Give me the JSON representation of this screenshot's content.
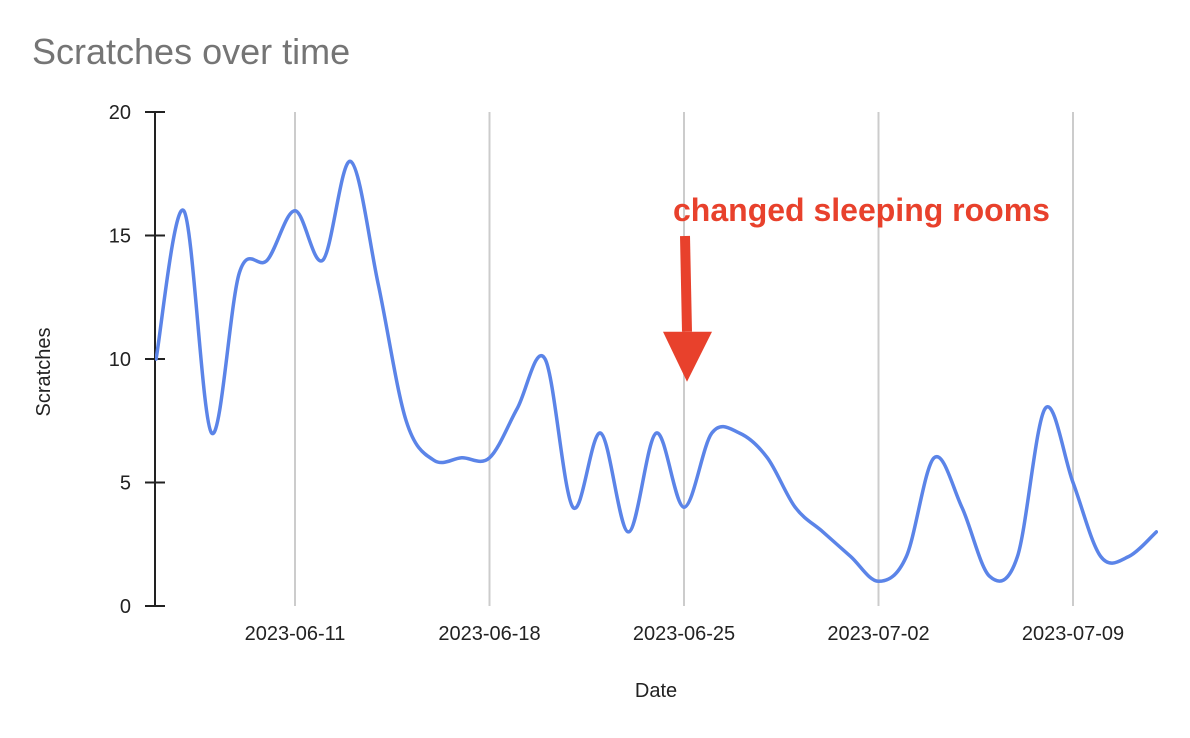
{
  "chart_data": {
    "type": "line",
    "title": "Scratches over time",
    "xlabel": "Date",
    "ylabel": "Scratches",
    "x_axis_type": "date",
    "xlim": [
      "2023-06-07",
      "2023-07-11"
    ],
    "ylim": [
      0,
      20
    ],
    "y_ticks": [
      0,
      5,
      10,
      15,
      20
    ],
    "x_ticks": [
      "2023-06-11",
      "2023-06-18",
      "2023-06-25",
      "2023-07-02",
      "2023-07-09"
    ],
    "grid": "vertical",
    "legend": "none",
    "series": [
      {
        "color": "#5b84e8",
        "smooth": true,
        "points": [
          {
            "x": "2023-06-06",
            "y": 10
          },
          {
            "x": "2023-06-07",
            "y": 16
          },
          {
            "x": "2023-06-08",
            "y": 7
          },
          {
            "x": "2023-06-09",
            "y": 13.5
          },
          {
            "x": "2023-06-10",
            "y": 14
          },
          {
            "x": "2023-06-11",
            "y": 16
          },
          {
            "x": "2023-06-12",
            "y": 14
          },
          {
            "x": "2023-06-13",
            "y": 18
          },
          {
            "x": "2023-06-14",
            "y": 13
          },
          {
            "x": "2023-06-15",
            "y": 7.5
          },
          {
            "x": "2023-06-16",
            "y": 5.9
          },
          {
            "x": "2023-06-17",
            "y": 6
          },
          {
            "x": "2023-06-18",
            "y": 6
          },
          {
            "x": "2023-06-19",
            "y": 8
          },
          {
            "x": "2023-06-20",
            "y": 10
          },
          {
            "x": "2023-06-21",
            "y": 4
          },
          {
            "x": "2023-06-22",
            "y": 7
          },
          {
            "x": "2023-06-23",
            "y": 3
          },
          {
            "x": "2023-06-24",
            "y": 7
          },
          {
            "x": "2023-06-25",
            "y": 4
          },
          {
            "x": "2023-06-26",
            "y": 7
          },
          {
            "x": "2023-06-27",
            "y": 7
          },
          {
            "x": "2023-06-28",
            "y": 6
          },
          {
            "x": "2023-06-29",
            "y": 4
          },
          {
            "x": "2023-06-30",
            "y": 3
          },
          {
            "x": "2023-07-01",
            "y": 2
          },
          {
            "x": "2023-07-02",
            "y": 1
          },
          {
            "x": "2023-07-03",
            "y": 2
          },
          {
            "x": "2023-07-04",
            "y": 6
          },
          {
            "x": "2023-07-05",
            "y": 4
          },
          {
            "x": "2023-07-06",
            "y": 1.2
          },
          {
            "x": "2023-07-07",
            "y": 2
          },
          {
            "x": "2023-07-08",
            "y": 8
          },
          {
            "x": "2023-07-09",
            "y": 5
          },
          {
            "x": "2023-07-10",
            "y": 2
          },
          {
            "x": "2023-07-11",
            "y": 2
          },
          {
            "x": "2023-07-12",
            "y": 3
          }
        ]
      }
    ],
    "annotations": [
      {
        "text": "changed sleeping rooms",
        "color": "#e8412c",
        "target": {
          "x": "2023-06-25",
          "y": 9
        }
      }
    ]
  }
}
